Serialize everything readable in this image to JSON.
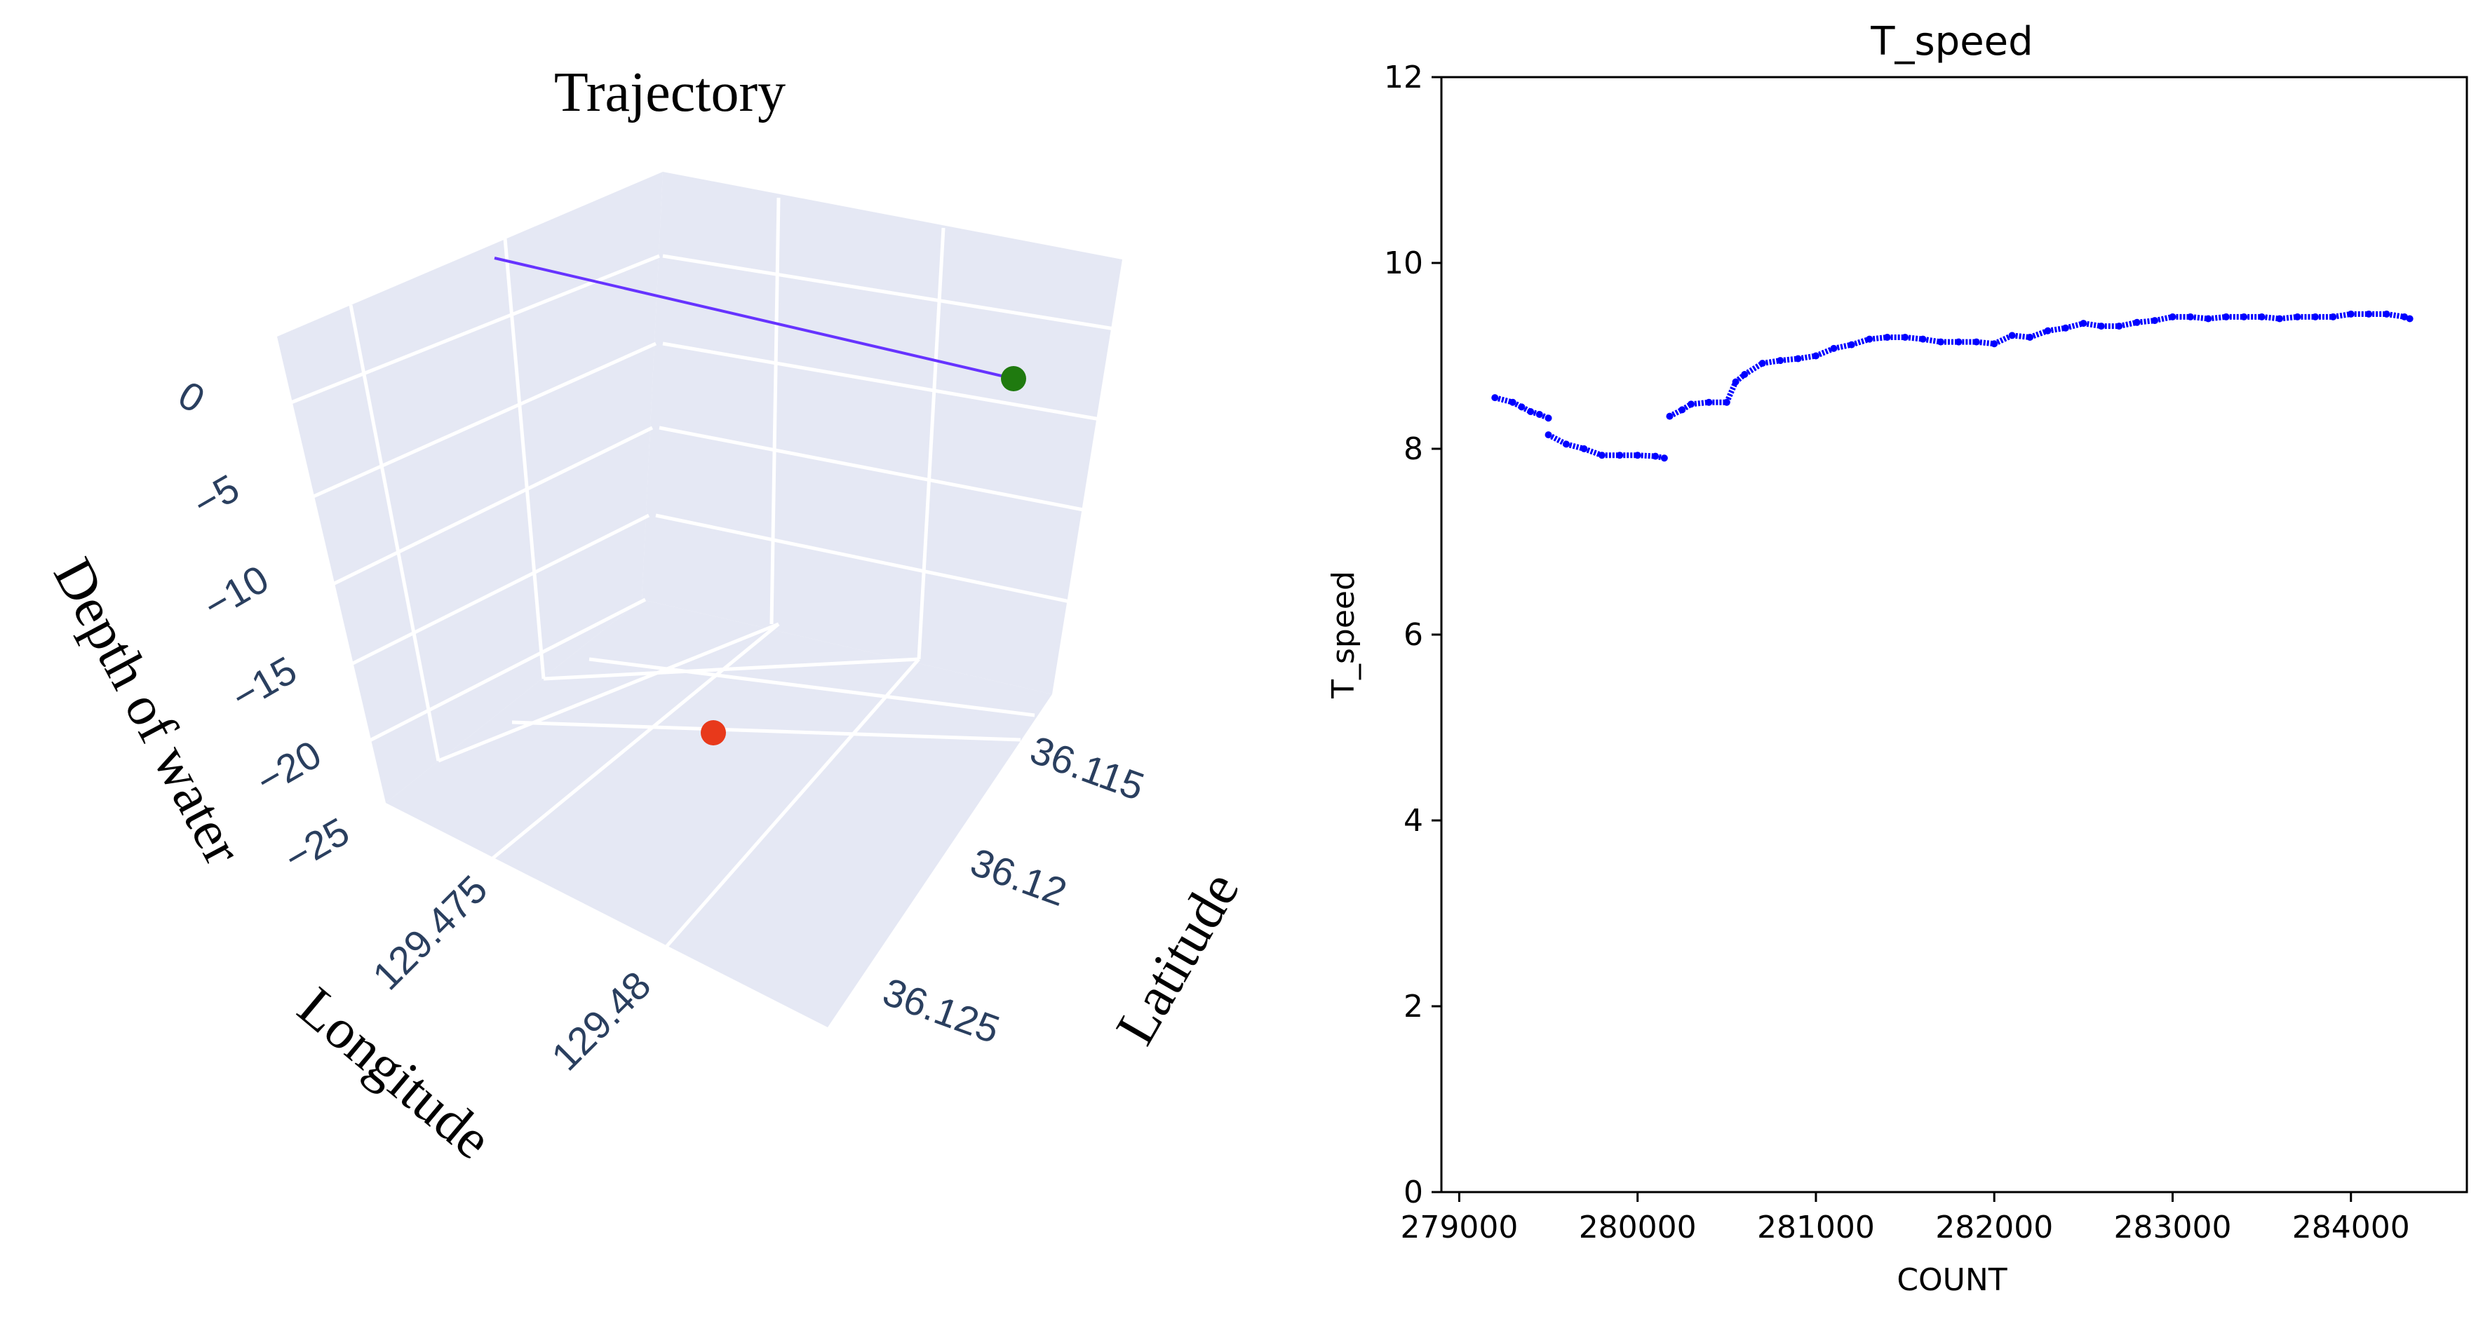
{
  "chart_data": [
    {
      "type": "scatter3d",
      "title": "Trajectory",
      "axis_labels": {
        "z": "Depth of water",
        "x": "Longitude",
        "y": "Latitude"
      },
      "z_ticks": [
        "0",
        "−5",
        "−10",
        "−15",
        "−20",
        "−25"
      ],
      "x_ticks": [
        "129.475",
        "129.48"
      ],
      "y_ticks": [
        "36.115",
        "36.12",
        "36.125"
      ],
      "trajectory_color": "#6633ff",
      "markers": [
        {
          "role": "start",
          "color": "#1f7a0f"
        },
        {
          "role": "end",
          "color": "#e8391b"
        }
      ],
      "pane_color": "#e5e8f4",
      "grid_color": "#ffffff"
    },
    {
      "type": "scatter",
      "title": "T_speed",
      "xlabel": "COUNT",
      "ylabel": "T_speed",
      "xlim": [
        278900,
        284650
      ],
      "ylim": [
        0,
        12
      ],
      "x_ticks": [
        279000,
        280000,
        281000,
        282000,
        283000,
        284000
      ],
      "y_ticks": [
        0,
        2,
        4,
        6,
        8,
        10,
        12
      ],
      "color": "#0000ff",
      "series": [
        {
          "x": [
            279200,
            279300,
            279350,
            279400,
            279450,
            279500,
            279500,
            279600,
            279700,
            279800,
            279900,
            280000,
            280100,
            280150,
            280180,
            280250,
            280300,
            280400,
            280500,
            280550,
            280600,
            280700,
            280800,
            280900,
            281000,
            281100,
            281200,
            281300,
            281400,
            281500,
            281600,
            281700,
            281800,
            281900,
            282000,
            282100,
            282200,
            282300,
            282400,
            282500,
            282600,
            282700,
            282800,
            282900,
            283000,
            283100,
            283200,
            283300,
            283400,
            283500,
            283600,
            283700,
            283800,
            283900,
            284000,
            284100,
            284200,
            284300,
            284330
          ],
          "y": [
            8.55,
            8.5,
            8.45,
            8.4,
            8.37,
            8.33,
            8.15,
            8.05,
            8.0,
            7.93,
            7.93,
            7.93,
            7.92,
            7.9,
            8.35,
            8.42,
            8.48,
            8.5,
            8.5,
            8.72,
            8.8,
            8.92,
            8.95,
            8.97,
            9.0,
            9.08,
            9.12,
            9.18,
            9.2,
            9.2,
            9.18,
            9.15,
            9.15,
            9.15,
            9.13,
            9.22,
            9.2,
            9.27,
            9.3,
            9.35,
            9.32,
            9.32,
            9.36,
            9.38,
            9.42,
            9.42,
            9.4,
            9.42,
            9.42,
            9.42,
            9.4,
            9.42,
            9.42,
            9.42,
            9.45,
            9.45,
            9.45,
            9.42,
            9.4
          ]
        }
      ]
    }
  ]
}
